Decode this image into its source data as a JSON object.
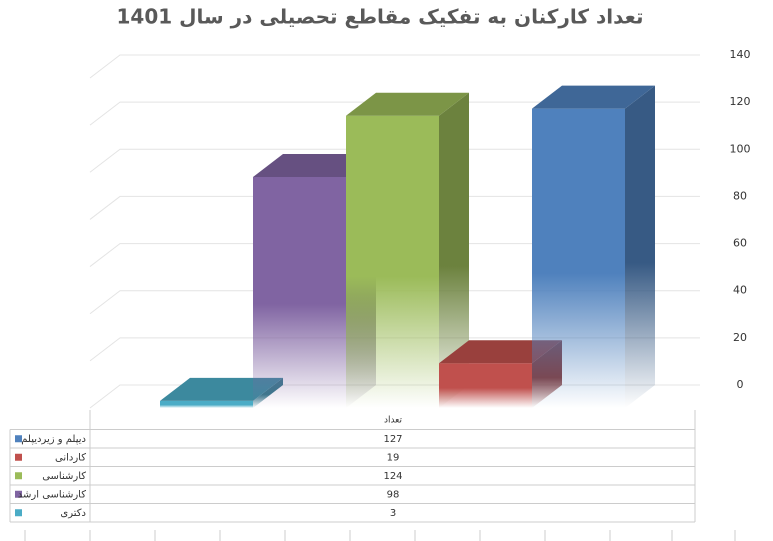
{
  "chart_data": {
    "type": "bar3d",
    "title": "تعداد کارکنان به تفکیک مقاطع تحصیلی در سال 1401",
    "categories": [
      "تعداد"
    ],
    "series": [
      {
        "name": "دیپلم و زیردیپلم",
        "color": "#4f81bd",
        "values": [
          127
        ]
      },
      {
        "name": "کاردانی",
        "color": "#c0504d",
        "values": [
          19
        ]
      },
      {
        "name": "کارشناسی",
        "color": "#9bbb59",
        "values": [
          124
        ]
      },
      {
        "name": "کارشناسی ارشد",
        "color": "#8064a2",
        "values": [
          98
        ]
      },
      {
        "name": "دکتری",
        "color": "#4bacc6",
        "values": [
          3
        ]
      }
    ],
    "ylim": [
      0,
      140
    ],
    "yticks": [
      0,
      20,
      40,
      60,
      80,
      100,
      120,
      140
    ],
    "grid": true
  }
}
